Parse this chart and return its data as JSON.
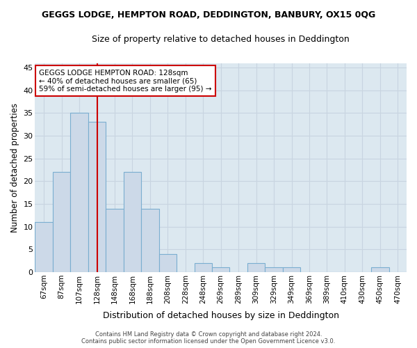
{
  "title": "GEGGS LODGE, HEMPTON ROAD, DEDDINGTON, BANBURY, OX15 0QG",
  "subtitle": "Size of property relative to detached houses in Deddington",
  "xlabel": "Distribution of detached houses by size in Deddington",
  "ylabel": "Number of detached properties",
  "categories": [
    "67sqm",
    "87sqm",
    "107sqm",
    "128sqm",
    "148sqm",
    "168sqm",
    "188sqm",
    "208sqm",
    "228sqm",
    "248sqm",
    "269sqm",
    "289sqm",
    "309sqm",
    "329sqm",
    "349sqm",
    "369sqm",
    "389sqm",
    "410sqm",
    "430sqm",
    "450sqm",
    "470sqm"
  ],
  "values": [
    11,
    22,
    35,
    33,
    14,
    22,
    14,
    4,
    0,
    2,
    1,
    0,
    2,
    1,
    1,
    0,
    0,
    0,
    0,
    1,
    0
  ],
  "bar_color": "#ccd9e8",
  "bar_edge_color": "#7aaed0",
  "vline_x_index": 3,
  "vline_color": "#cc0000",
  "annotation_text": "GEGGS LODGE HEMPTON ROAD: 128sqm\n← 40% of detached houses are smaller (65)\n59% of semi-detached houses are larger (95) →",
  "annotation_box_color": "#ffffff",
  "annotation_box_edge": "#cc0000",
  "ylim": [
    0,
    46
  ],
  "yticks": [
    0,
    5,
    10,
    15,
    20,
    25,
    30,
    35,
    40,
    45
  ],
  "grid_color": "#c8d4e0",
  "plot_bg_color": "#dce8f0",
  "fig_bg_color": "#ffffff",
  "footer1": "Contains HM Land Registry data © Crown copyright and database right 2024.",
  "footer2": "Contains public sector information licensed under the Open Government Licence v3.0."
}
